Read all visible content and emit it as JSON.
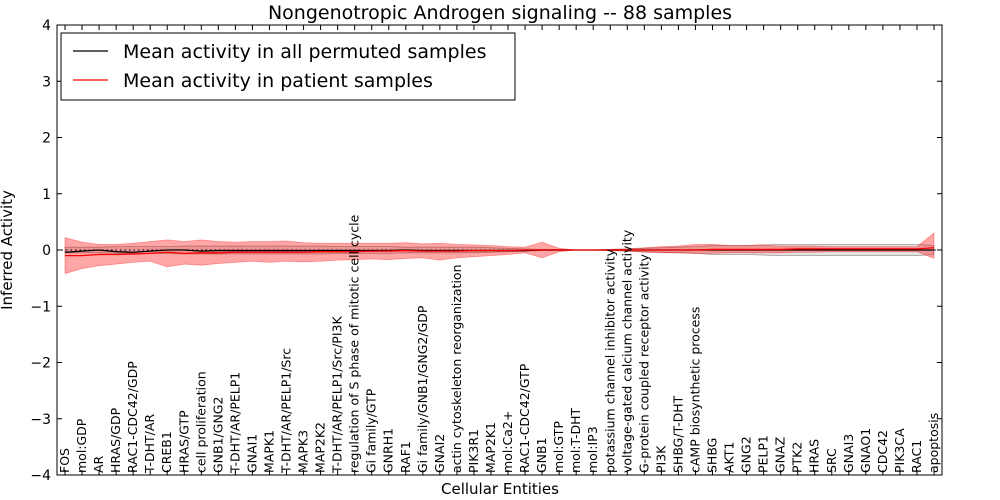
{
  "chart_data": {
    "type": "line",
    "title": "Nongenotropic Androgen signaling -- 88 samples",
    "xlabel": "Cellular Entities",
    "ylabel": "Inferred Activity",
    "ylim": [
      -4,
      4
    ],
    "yticks": [
      -4,
      -3,
      -2,
      -1,
      0,
      1,
      2,
      3,
      4
    ],
    "yticklabels": [
      "−4",
      "−3",
      "−2",
      "−1",
      "0",
      "1",
      "2",
      "3",
      "4"
    ],
    "legend_position": "top-left",
    "grid": false,
    "categories": [
      "FOS",
      "mol:GDP",
      "AR",
      "HRAS/GDP",
      "RAC1-CDC42/GDP",
      "T-DHT/AR",
      "CREB1",
      "HRAS/GTP",
      "cell proliferation",
      "GNB1/GNG2",
      "T-DHT/AR/PELP1",
      "GNAI1",
      "MAPK1",
      "T-DHT/AR/PELP1/Src",
      "MAPK3",
      "MAP2K2",
      "T-DHT/AR/PELP1/Src/PI3K",
      "regulation of S phase of mitotic cell cycle",
      "Gi family/GTP",
      "GNRH1",
      "RAF1",
      "Gi family/GNB1/GNG2/GDP",
      "GNAI2",
      "actin cytoskeleton reorganization",
      "PIK3R1",
      "MAP2K1",
      "mol:Ca2+",
      "RAC1-CDC42/GTP",
      "GNB1",
      "mol:GTP",
      "mol:T-DHT",
      "mol:IP3",
      "potassium channel inhibitor activity",
      "voltage-gated calcium channel activity",
      "G-protein coupled receptor activity",
      "PI3K",
      "SHBG/T-DHT",
      "cAMP biosynthetic process",
      "SHBG",
      "AKT1",
      "GNG2",
      "PELP1",
      "GNAZ",
      "PTK2",
      "HRAS",
      "SRC",
      "GNAI3",
      "GNAO1",
      "CDC42",
      "PIK3CA",
      "RAC1",
      "apoptosis"
    ],
    "series": [
      {
        "name": "Mean activity in all permuted samples",
        "color": "#000000",
        "style": "solid",
        "values": [
          -0.04,
          -0.02,
          0.0,
          -0.03,
          -0.04,
          -0.02,
          0.0,
          0.0,
          -0.02,
          -0.01,
          -0.01,
          -0.01,
          -0.01,
          -0.01,
          -0.01,
          -0.01,
          -0.01,
          -0.01,
          -0.01,
          -0.01,
          0.0,
          -0.01,
          -0.01,
          -0.01,
          -0.01,
          -0.01,
          -0.01,
          -0.01,
          0.0,
          0.0,
          0.0,
          0.0,
          0.0,
          0.0,
          0.0,
          0.0,
          0.0,
          0.0,
          0.0,
          0.0,
          0.0,
          0.0,
          0.0,
          0.0,
          0.0,
          0.0,
          0.0,
          0.0,
          0.0,
          0.0,
          0.0,
          0.0
        ],
        "band_lower": [
          -0.05,
          -0.05,
          -0.05,
          -0.06,
          -0.06,
          -0.06,
          -0.06,
          -0.07,
          -0.07,
          -0.07,
          -0.07,
          -0.07,
          -0.07,
          -0.07,
          -0.07,
          -0.07,
          -0.06,
          -0.06,
          -0.06,
          -0.06,
          -0.05,
          -0.05,
          -0.05,
          -0.05,
          -0.05,
          -0.04,
          -0.03,
          -0.02,
          -0.01,
          -0.01,
          0.0,
          0.0,
          -0.01,
          -0.02,
          -0.03,
          -0.04,
          -0.05,
          -0.06,
          -0.08,
          -0.08,
          -0.08,
          -0.09,
          -0.1,
          -0.1,
          -0.1,
          -0.1,
          -0.1,
          -0.1,
          -0.1,
          -0.1,
          -0.1,
          -0.08
        ],
        "band_upper": [
          0.05,
          0.05,
          0.05,
          0.06,
          0.06,
          0.06,
          0.06,
          0.07,
          0.07,
          0.07,
          0.07,
          0.07,
          0.07,
          0.07,
          0.07,
          0.07,
          0.06,
          0.06,
          0.06,
          0.06,
          0.05,
          0.05,
          0.05,
          0.05,
          0.05,
          0.04,
          0.03,
          0.02,
          0.01,
          0.01,
          0.0,
          0.0,
          0.01,
          0.02,
          0.03,
          0.04,
          0.05,
          0.06,
          0.08,
          0.08,
          0.08,
          0.09,
          0.1,
          0.1,
          0.1,
          0.1,
          0.1,
          0.1,
          0.1,
          0.1,
          0.1,
          0.08
        ]
      },
      {
        "name": "Mean activity in patient samples",
        "color": "#ff0000",
        "style": "solid",
        "values": [
          -0.1,
          -0.1,
          -0.08,
          -0.08,
          -0.07,
          -0.06,
          -0.04,
          -0.06,
          -0.05,
          -0.05,
          -0.04,
          -0.04,
          -0.04,
          -0.04,
          -0.04,
          -0.03,
          -0.03,
          -0.03,
          -0.02,
          -0.02,
          -0.01,
          -0.02,
          -0.02,
          -0.02,
          -0.01,
          -0.01,
          -0.01,
          0.0,
          0.0,
          0.0,
          0.0,
          0.0,
          0.0,
          0.0,
          0.0,
          0.0,
          0.0,
          0.0,
          0.01,
          0.01,
          0.01,
          0.01,
          0.01,
          0.02,
          0.02,
          0.02,
          0.02,
          0.02,
          0.02,
          0.02,
          0.02,
          0.04
        ],
        "band_lower": [
          -0.42,
          -0.33,
          -0.28,
          -0.25,
          -0.22,
          -0.2,
          -0.3,
          -0.25,
          -0.27,
          -0.24,
          -0.22,
          -0.2,
          -0.22,
          -0.2,
          -0.21,
          -0.2,
          -0.18,
          -0.17,
          -0.16,
          -0.17,
          -0.15,
          -0.14,
          -0.18,
          -0.14,
          -0.12,
          -0.1,
          -0.08,
          -0.05,
          -0.14,
          -0.03,
          0.0,
          0.0,
          -0.01,
          -0.02,
          -0.04,
          -0.05,
          -0.05,
          -0.06,
          -0.06,
          -0.05,
          -0.05,
          -0.05,
          -0.05,
          -0.04,
          -0.04,
          -0.03,
          -0.03,
          -0.03,
          -0.03,
          -0.03,
          -0.03,
          -0.15
        ],
        "band_upper": [
          0.22,
          0.14,
          0.1,
          0.1,
          0.12,
          0.15,
          0.18,
          0.15,
          0.18,
          0.15,
          0.14,
          0.15,
          0.15,
          0.16,
          0.13,
          0.12,
          0.12,
          0.12,
          0.12,
          0.12,
          0.13,
          0.11,
          0.12,
          0.1,
          0.09,
          0.08,
          0.06,
          0.05,
          0.14,
          0.03,
          0.0,
          0.0,
          0.01,
          0.02,
          0.04,
          0.06,
          0.07,
          0.1,
          0.1,
          0.08,
          0.08,
          0.09,
          0.07,
          0.07,
          0.07,
          0.06,
          0.06,
          0.06,
          0.06,
          0.06,
          0.06,
          0.3
        ]
      }
    ]
  }
}
